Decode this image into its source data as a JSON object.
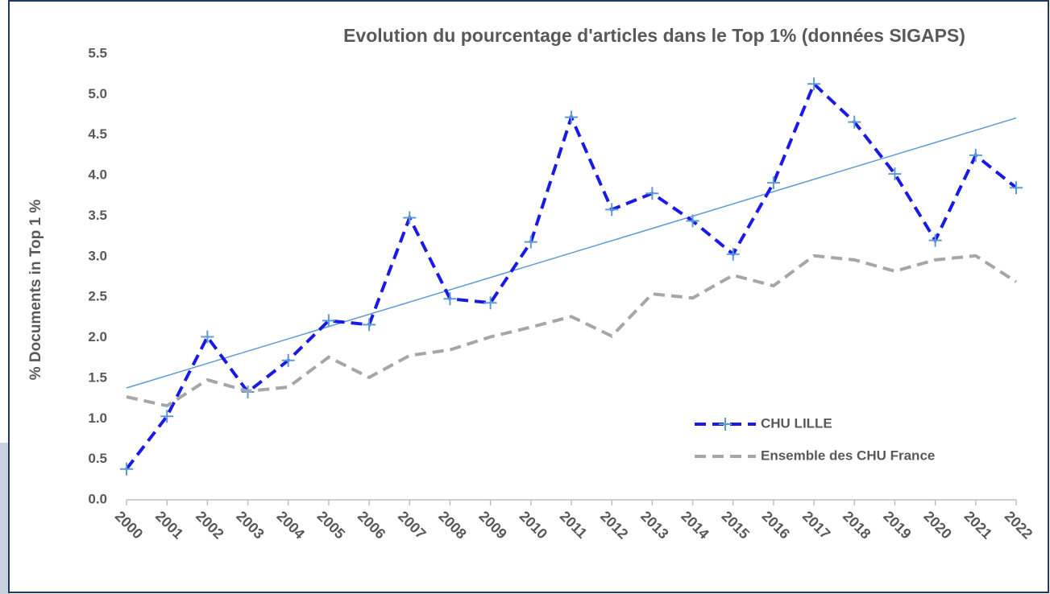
{
  "chart_data": {
    "type": "line",
    "title": "Evolution du pourcentage d'articles dans le Top 1% (données SIGAPS)",
    "ylabel": "% Documents in Top 1 %",
    "categories": [
      "2000",
      "2001",
      "2002",
      "2003",
      "2004",
      "2005",
      "2006",
      "2007",
      "2008",
      "2009",
      "2010",
      "2011",
      "2012",
      "2013",
      "2014",
      "2015",
      "2016",
      "2017",
      "2018",
      "2019",
      "2020",
      "2021",
      "2022"
    ],
    "series": [
      {
        "name": "CHU LILLE",
        "color": "#1a1ae6",
        "marker": "plus",
        "marker_color": "#5b9bd5",
        "values": [
          0.38,
          1.03,
          2.01,
          1.33,
          1.72,
          2.21,
          2.16,
          3.48,
          2.48,
          2.43,
          3.18,
          4.72,
          3.58,
          3.78,
          3.44,
          3.03,
          3.91,
          5.13,
          4.66,
          4.02,
          3.2,
          4.25,
          3.85
        ]
      },
      {
        "name": "Ensemble des CHU France",
        "color": "#a6a6a6",
        "marker": "none",
        "values": [
          1.27,
          1.16,
          1.48,
          1.34,
          1.39,
          1.76,
          1.51,
          1.78,
          1.85,
          2.01,
          2.13,
          2.26,
          2.02,
          2.54,
          2.49,
          2.77,
          2.64,
          3.01,
          2.96,
          2.82,
          2.96,
          3.01,
          2.69
        ]
      }
    ],
    "trendline": {
      "color": "#5b9bd5",
      "values": [
        1.38,
        4.71
      ]
    },
    "ylim": [
      0,
      5.5
    ],
    "yticks": [
      {
        "value": 0,
        "label": "0.0"
      },
      0.5,
      {
        "value": 1,
        "label": "1.0"
      },
      1.5,
      {
        "value": 2,
        "label": "2.0"
      },
      2.5,
      {
        "value": 3,
        "label": "3.0"
      },
      3.5,
      {
        "value": 4,
        "label": "4.0"
      },
      4.5,
      {
        "value": 5,
        "label": "5.0"
      },
      5.5
    ],
    "grid": false,
    "legend": "lower right"
  }
}
